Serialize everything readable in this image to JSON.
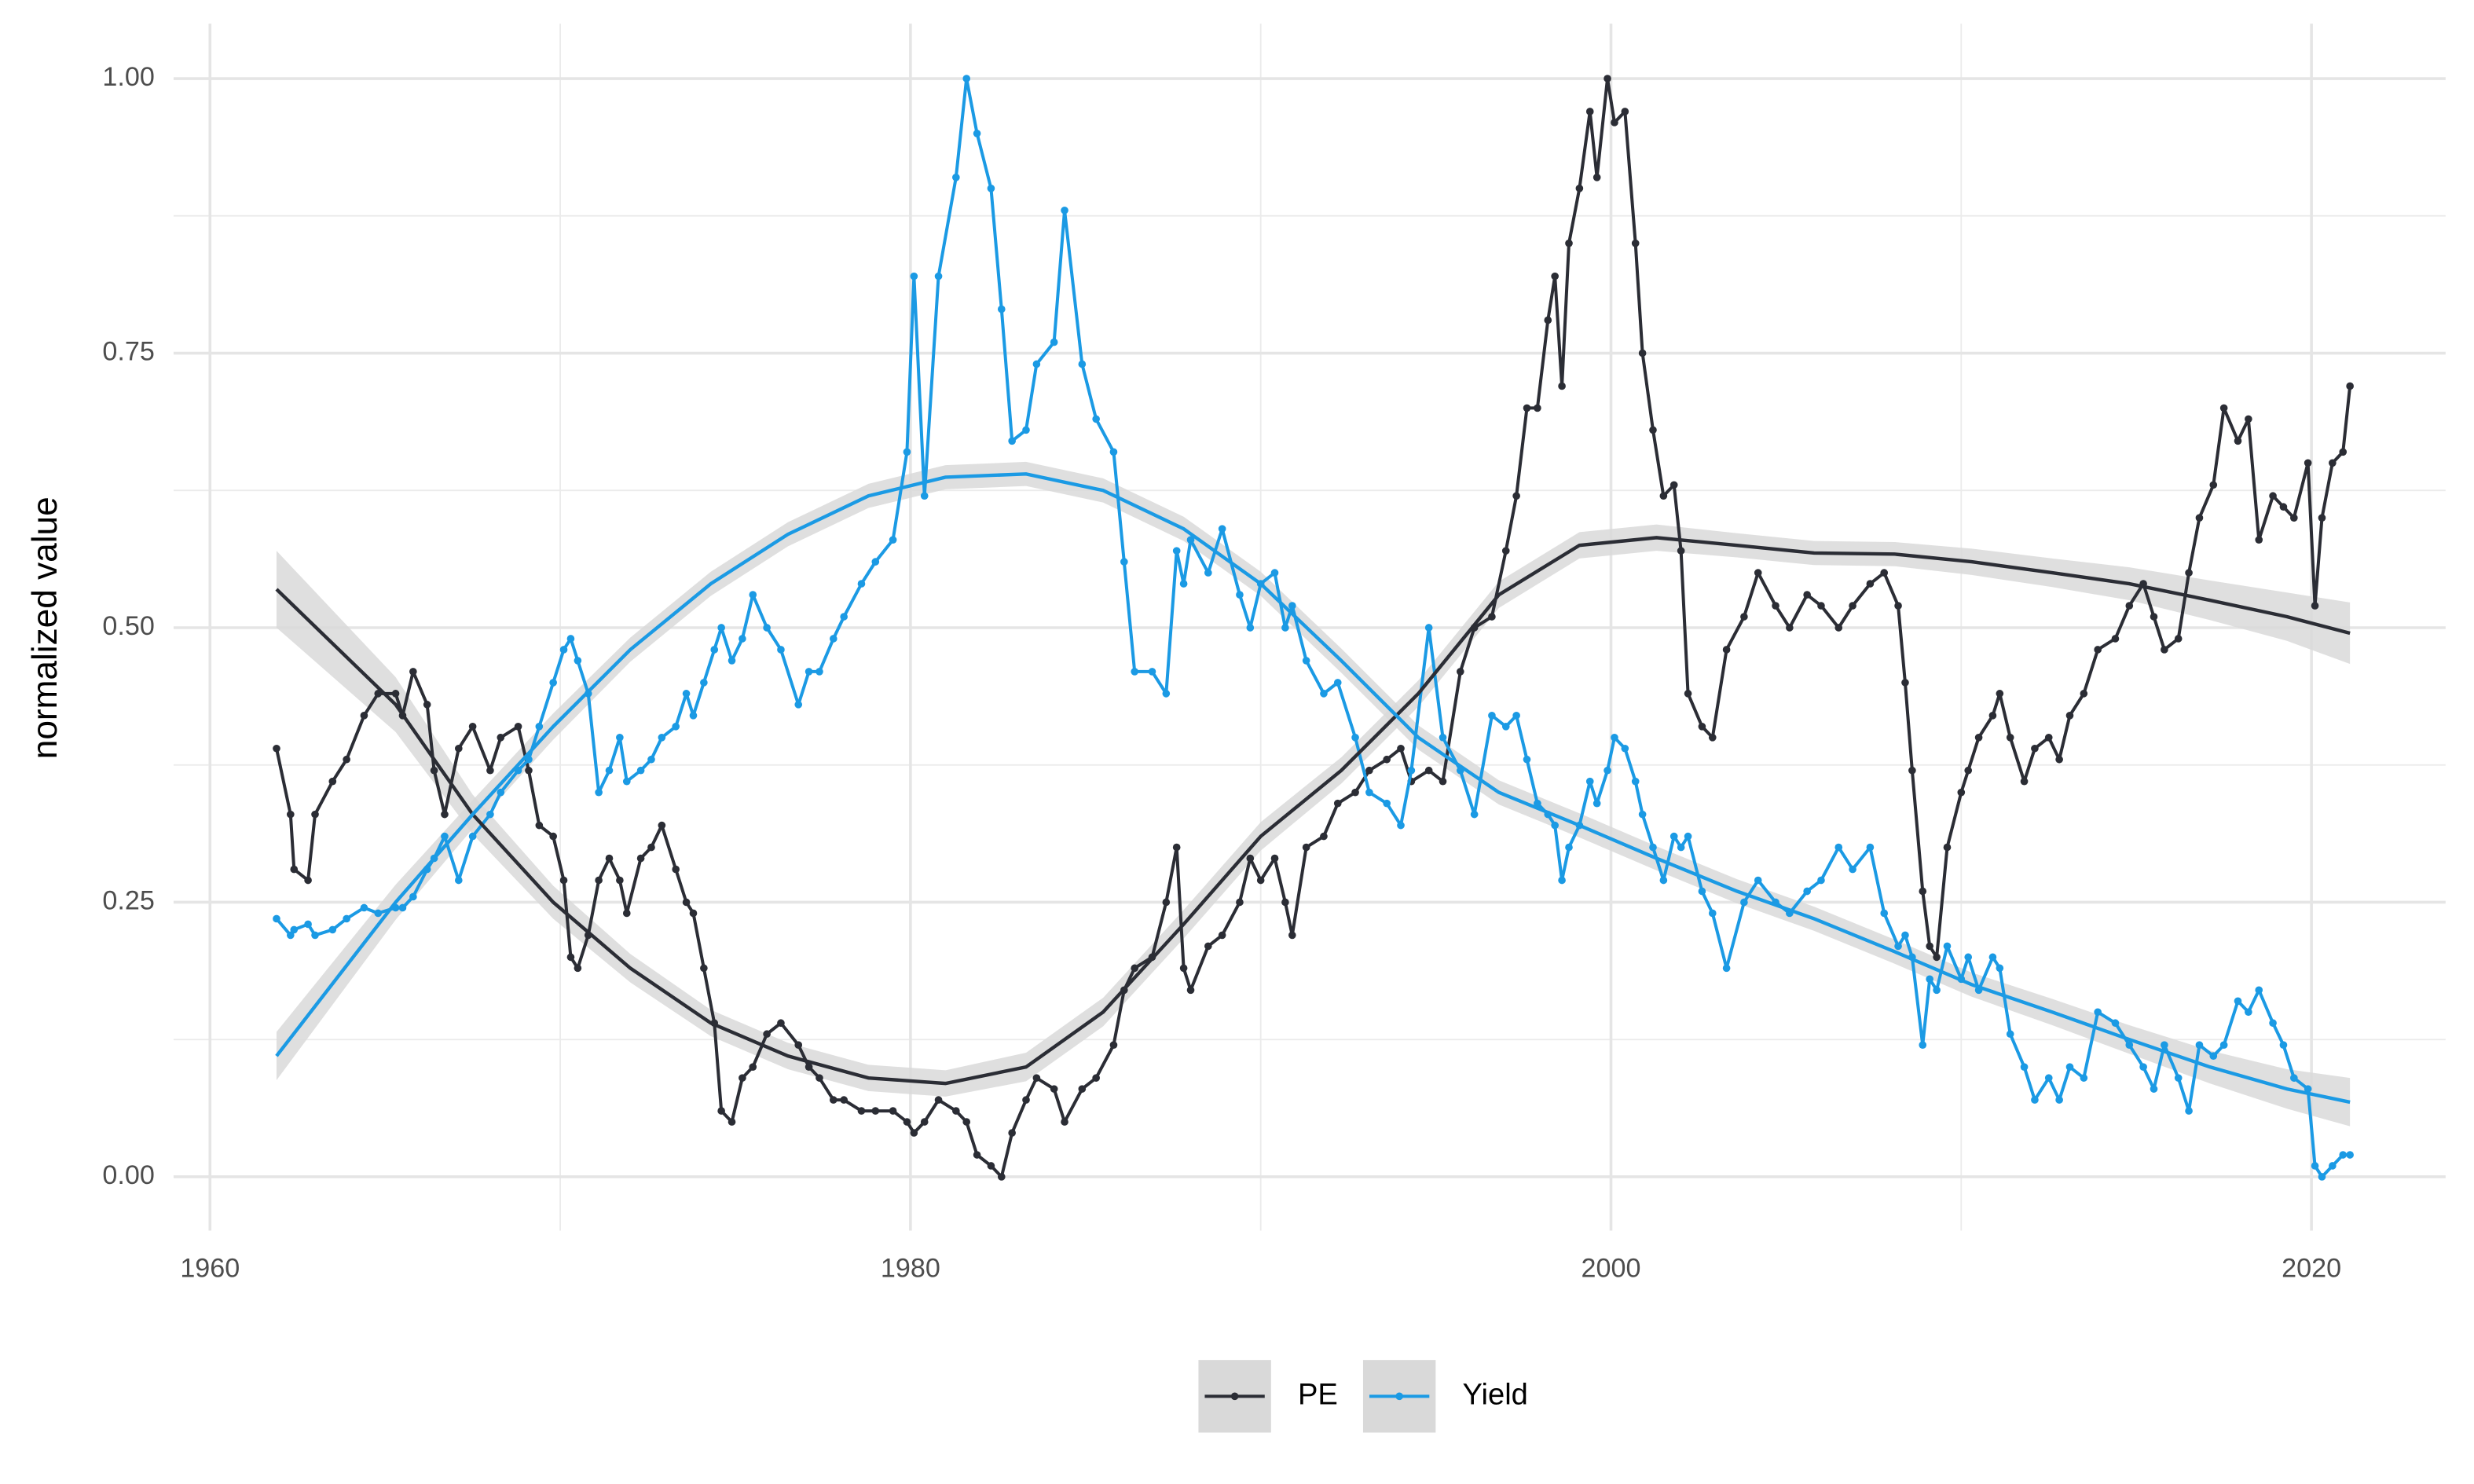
{
  "chart_data": {
    "type": "line",
    "y_label": "normalized value",
    "xlim": [
      1958.96,
      2023.83
    ],
    "ylim": [
      -0.049,
      1.05
    ],
    "xticks": [
      1960,
      1980,
      2000,
      2020
    ],
    "yticks": [
      {
        "value": 0,
        "label": "0.00"
      },
      {
        "value": 0.25,
        "label": "0.25"
      },
      {
        "value": 0.5,
        "label": "0.50"
      },
      {
        "value": 0.75,
        "label": "0.75"
      },
      {
        "value": 1,
        "label": "1.00"
      }
    ],
    "xminor": [
      1970,
      1990,
      2010
    ],
    "yminor": [
      0.125,
      0.375,
      0.625,
      0.875
    ],
    "grid": true,
    "legend": "bottom",
    "band_color": "#d9d9d9",
    "x": [
      1961.9,
      1962.3,
      1962.4,
      1962.8,
      1963.0,
      1963.5,
      1963.9,
      1964.4,
      1964.8,
      1965.3,
      1965.5,
      1965.8,
      1966.2,
      1966.4,
      1966.7,
      1967.1,
      1967.5,
      1968.0,
      1968.3,
      1968.8,
      1969.1,
      1969.4,
      1969.8,
      1970.1,
      1970.3,
      1970.5,
      1970.8,
      1971.1,
      1971.4,
      1971.7,
      1971.9,
      1972.3,
      1972.6,
      1972.9,
      1973.3,
      1973.6,
      1973.8,
      1974.1,
      1974.4,
      1974.6,
      1974.9,
      1975.2,
      1975.5,
      1975.9,
      1976.3,
      1976.8,
      1977.1,
      1977.4,
      1977.8,
      1978.1,
      1978.6,
      1979.0,
      1979.5,
      1979.9,
      1980.1,
      1980.4,
      1980.8,
      1981.3,
      1981.6,
      1981.9,
      1982.3,
      1982.6,
      1982.9,
      1983.3,
      1983.6,
      1984.1,
      1984.4,
      1984.9,
      1985.3,
      1985.8,
      1986.1,
      1986.4,
      1986.9,
      1987.3,
      1987.6,
      1987.8,
      1988.0,
      1988.5,
      1988.9,
      1989.4,
      1989.7,
      1990.0,
      1990.4,
      1990.7,
      1990.9,
      1991.3,
      1991.8,
      1992.2,
      1992.7,
      1993.1,
      1993.6,
      1994.0,
      1994.3,
      1994.8,
      1995.2,
      1995.7,
      1996.1,
      1996.6,
      1997.0,
      1997.3,
      1997.6,
      1997.9,
      1998.2,
      1998.4,
      1998.6,
      1998.8,
      1999.1,
      1999.4,
      1999.6,
      1999.9,
      2000.1,
      2000.4,
      2000.7,
      2000.9,
      2001.2,
      2001.5,
      2001.8,
      2002.0,
      2002.2,
      2002.6,
      2002.9,
      2003.3,
      2003.8,
      2004.2,
      2004.7,
      2005.1,
      2005.6,
      2006.0,
      2006.5,
      2006.9,
      2007.4,
      2007.8,
      2008.2,
      2008.4,
      2008.6,
      2008.9,
      2009.1,
      2009.3,
      2009.6,
      2010.0,
      2010.2,
      2010.5,
      2010.9,
      2011.1,
      2011.4,
      2011.8,
      2012.1,
      2012.5,
      2012.8,
      2013.1,
      2013.5,
      2013.9,
      2014.4,
      2014.8,
      2015.2,
      2015.5,
      2015.8,
      2016.2,
      2016.5,
      2016.8,
      2017.2,
      2017.5,
      2017.9,
      2018.2,
      2018.5,
      2018.9,
      2019.2,
      2019.5,
      2019.9,
      2020.1,
      2020.3,
      2020.6,
      2020.9,
      2021.1
    ],
    "smooth_x": [
      1961.9,
      1965.3,
      1967.5,
      1969.8,
      1972.0,
      1974.3,
      1976.5,
      1978.8,
      1981.0,
      1983.3,
      1985.5,
      1987.8,
      1990.0,
      1992.3,
      1994.5,
      1996.8,
      1999.1,
      2001.3,
      2003.6,
      2005.8,
      2008.1,
      2010.3,
      2012.6,
      2014.8,
      2017.1,
      2019.3,
      2021.1
    ],
    "series": [
      {
        "name": "PE",
        "color": "#2b2d35",
        "values": [
          0.39,
          0.33,
          0.28,
          0.27,
          0.33,
          0.36,
          0.38,
          0.42,
          0.44,
          0.44,
          0.42,
          0.46,
          0.43,
          0.37,
          0.33,
          0.39,
          0.41,
          0.37,
          0.4,
          0.41,
          0.37,
          0.32,
          0.31,
          0.27,
          0.2,
          0.19,
          0.22,
          0.27,
          0.29,
          0.27,
          0.24,
          0.29,
          0.3,
          0.32,
          0.28,
          0.25,
          0.24,
          0.19,
          0.14,
          0.06,
          0.05,
          0.09,
          0.1,
          0.13,
          0.14,
          0.12,
          0.1,
          0.09,
          0.07,
          0.07,
          0.06,
          0.06,
          0.06,
          0.05,
          0.04,
          0.05,
          0.07,
          0.06,
          0.05,
          0.02,
          0.01,
          0.0,
          0.04,
          0.07,
          0.09,
          0.08,
          0.05,
          0.08,
          0.09,
          0.12,
          0.17,
          0.19,
          0.2,
          0.25,
          0.3,
          0.19,
          0.17,
          0.21,
          0.22,
          0.25,
          0.29,
          0.27,
          0.29,
          0.25,
          0.22,
          0.3,
          0.31,
          0.34,
          0.35,
          0.37,
          0.38,
          0.39,
          0.36,
          0.37,
          0.36,
          0.46,
          0.5,
          0.51,
          0.57,
          0.62,
          0.7,
          0.7,
          0.78,
          0.82,
          0.72,
          0.85,
          0.9,
          0.97,
          0.91,
          1.0,
          0.96,
          0.97,
          0.85,
          0.75,
          0.68,
          0.62,
          0.63,
          0.57,
          0.44,
          0.41,
          0.4,
          0.48,
          0.51,
          0.55,
          0.52,
          0.5,
          0.53,
          0.52,
          0.5,
          0.52,
          0.54,
          0.55,
          0.52,
          0.45,
          0.37,
          0.26,
          0.21,
          0.2,
          0.3,
          0.35,
          0.37,
          0.4,
          0.42,
          0.44,
          0.4,
          0.36,
          0.39,
          0.4,
          0.38,
          0.42,
          0.44,
          0.48,
          0.49,
          0.52,
          0.54,
          0.51,
          0.48,
          0.49,
          0.55,
          0.6,
          0.63,
          0.7,
          0.67,
          0.69,
          0.58,
          0.62,
          0.61,
          0.6,
          0.65,
          0.52,
          0.6,
          0.65,
          0.66,
          0.72
        ],
        "smooth": [
          0.535,
          0.43,
          0.33,
          0.25,
          0.19,
          0.14,
          0.11,
          0.09,
          0.085,
          0.1,
          0.15,
          0.23,
          0.31,
          0.37,
          0.44,
          0.53,
          0.575,
          0.582,
          0.575,
          0.568,
          0.567,
          0.56,
          0.55,
          0.54,
          0.525,
          0.51,
          0.495
        ],
        "smooth_se": [
          0.035,
          0.025,
          0.018,
          0.015,
          0.013,
          0.012,
          0.012,
          0.012,
          0.012,
          0.013,
          0.013,
          0.013,
          0.013,
          0.012,
          0.012,
          0.012,
          0.012,
          0.012,
          0.011,
          0.011,
          0.011,
          0.012,
          0.013,
          0.015,
          0.018,
          0.022,
          0.028
        ]
      },
      {
        "name": "Yield",
        "color": "#1b9ae4",
        "values": [
          0.235,
          0.22,
          0.225,
          0.23,
          0.22,
          0.225,
          0.235,
          0.245,
          0.24,
          0.245,
          0.245,
          0.255,
          0.28,
          0.29,
          0.31,
          0.27,
          0.31,
          0.33,
          0.35,
          0.37,
          0.38,
          0.41,
          0.45,
          0.48,
          0.49,
          0.47,
          0.44,
          0.35,
          0.37,
          0.4,
          0.36,
          0.37,
          0.38,
          0.4,
          0.41,
          0.44,
          0.42,
          0.45,
          0.48,
          0.5,
          0.47,
          0.49,
          0.53,
          0.5,
          0.48,
          0.43,
          0.46,
          0.46,
          0.49,
          0.51,
          0.54,
          0.56,
          0.58,
          0.66,
          0.82,
          0.62,
          0.82,
          0.91,
          1.0,
          0.95,
          0.9,
          0.79,
          0.67,
          0.68,
          0.74,
          0.76,
          0.88,
          0.74,
          0.69,
          0.66,
          0.56,
          0.46,
          0.46,
          0.44,
          0.57,
          0.54,
          0.58,
          0.55,
          0.59,
          0.53,
          0.5,
          0.54,
          0.55,
          0.5,
          0.52,
          0.47,
          0.44,
          0.45,
          0.4,
          0.35,
          0.34,
          0.32,
          0.37,
          0.5,
          0.4,
          0.37,
          0.33,
          0.42,
          0.41,
          0.42,
          0.38,
          0.34,
          0.33,
          0.32,
          0.27,
          0.3,
          0.32,
          0.36,
          0.34,
          0.37,
          0.4,
          0.39,
          0.36,
          0.33,
          0.3,
          0.27,
          0.31,
          0.3,
          0.31,
          0.26,
          0.24,
          0.19,
          0.25,
          0.27,
          0.25,
          0.24,
          0.26,
          0.27,
          0.3,
          0.28,
          0.3,
          0.24,
          0.21,
          0.22,
          0.2,
          0.12,
          0.18,
          0.17,
          0.21,
          0.18,
          0.2,
          0.17,
          0.2,
          0.19,
          0.13,
          0.1,
          0.07,
          0.09,
          0.07,
          0.1,
          0.09,
          0.15,
          0.14,
          0.12,
          0.1,
          0.08,
          0.12,
          0.09,
          0.06,
          0.12,
          0.11,
          0.12,
          0.16,
          0.15,
          0.17,
          0.14,
          0.12,
          0.09,
          0.08,
          0.01,
          0.0,
          0.01,
          0.02,
          0.02
        ],
        "smooth": [
          0.11,
          0.25,
          0.33,
          0.41,
          0.48,
          0.54,
          0.585,
          0.62,
          0.637,
          0.64,
          0.625,
          0.59,
          0.54,
          0.47,
          0.4,
          0.35,
          0.32,
          0.29,
          0.26,
          0.235,
          0.205,
          0.175,
          0.15,
          0.125,
          0.1,
          0.08,
          0.068
        ],
        "smooth_se": [
          0.022,
          0.016,
          0.013,
          0.012,
          0.011,
          0.011,
          0.011,
          0.011,
          0.011,
          0.011,
          0.011,
          0.011,
          0.011,
          0.011,
          0.011,
          0.011,
          0.011,
          0.011,
          0.011,
          0.011,
          0.011,
          0.011,
          0.012,
          0.013,
          0.015,
          0.018,
          0.022
        ]
      }
    ]
  }
}
